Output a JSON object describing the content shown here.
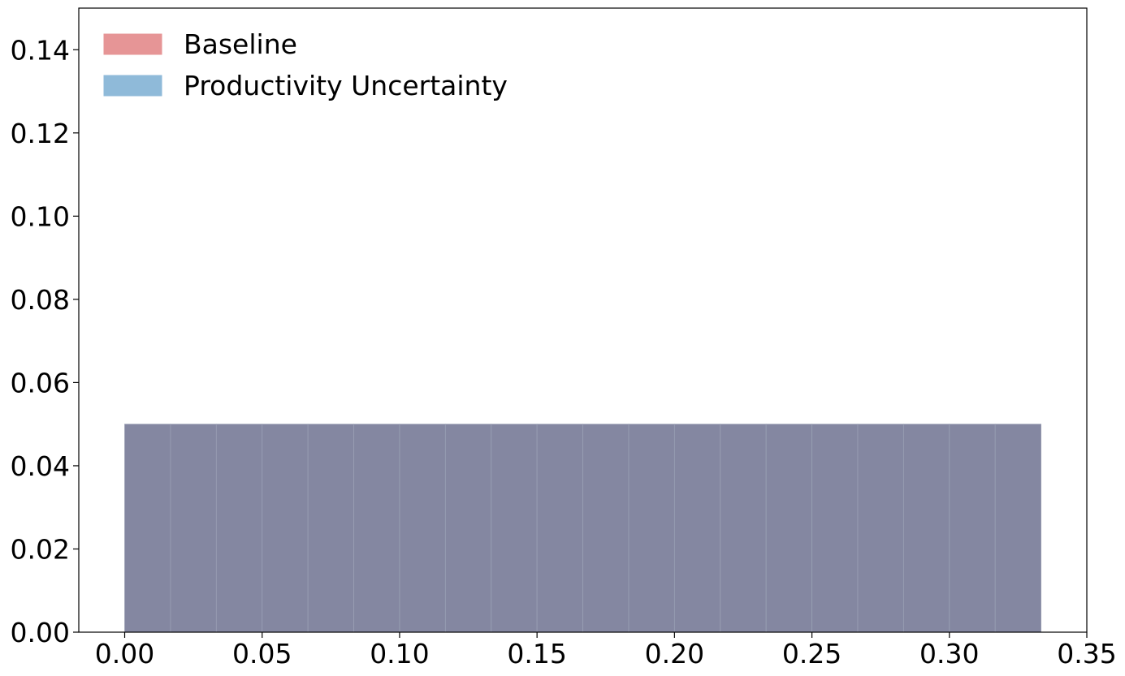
{
  "chart_data": {
    "type": "bar",
    "title": "",
    "xlabel": "",
    "ylabel": "",
    "xlim": [
      -0.0167,
      0.35
    ],
    "ylim": [
      0,
      0.15
    ],
    "bin_width": 0.016667,
    "x_ticks": [
      "0.00",
      "0.05",
      "0.10",
      "0.15",
      "0.20",
      "0.25",
      "0.30",
      "0.35"
    ],
    "y_ticks": [
      "0.00",
      "0.02",
      "0.04",
      "0.06",
      "0.08",
      "0.10",
      "0.12",
      "0.14"
    ],
    "x_tick_values": [
      0,
      0.05,
      0.1,
      0.15,
      0.2,
      0.25,
      0.3,
      0.35
    ],
    "y_tick_values": [
      0,
      0.02,
      0.04,
      0.06,
      0.08,
      0.1,
      0.12,
      0.14
    ],
    "bins": [
      0.0,
      0.016667,
      0.033333,
      0.05,
      0.066667,
      0.083333,
      0.1,
      0.116667,
      0.133333,
      0.15,
      0.166667,
      0.183333,
      0.2,
      0.216667,
      0.233333,
      0.25,
      0.266667,
      0.283333,
      0.3,
      0.316667
    ],
    "series": [
      {
        "name": "Baseline",
        "color": "#e69596",
        "values": [
          0.05,
          0.05,
          0.05,
          0.05,
          0.05,
          0.05,
          0.05,
          0.05,
          0.05,
          0.05,
          0.05,
          0.05,
          0.05,
          0.05,
          0.05,
          0.05,
          0.05,
          0.05,
          0.05,
          0.05
        ]
      },
      {
        "name": "Productivity Uncertainty",
        "color": "#8fbad9",
        "values": [
          0.05,
          0.05,
          0.05,
          0.05,
          0.05,
          0.05,
          0.05,
          0.05,
          0.05,
          0.05,
          0.05,
          0.05,
          0.05,
          0.05,
          0.05,
          0.05,
          0.05,
          0.05,
          0.05,
          0.05
        ]
      }
    ],
    "overlap_color": "#8487a1",
    "grid": false,
    "legend_position": "top-left"
  }
}
